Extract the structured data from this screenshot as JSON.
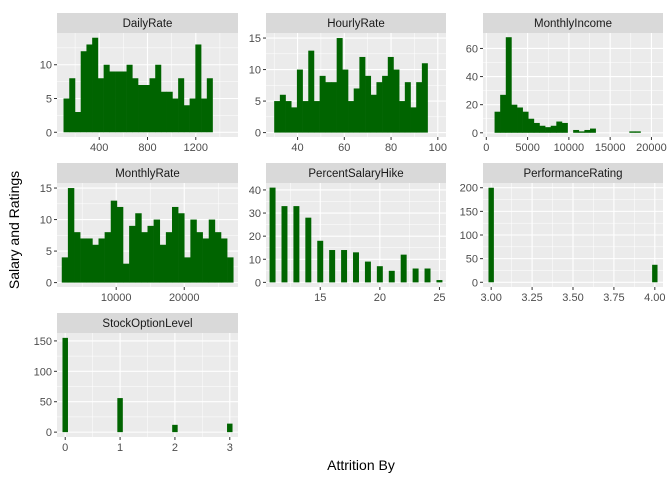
{
  "figure": {
    "xlabel": "Attrition By",
    "ylabel": "Salary and Ratings"
  },
  "style": {
    "panel_bg": "#ebebeb",
    "strip_bg": "#d9d9d9",
    "grid_major": "#ffffff",
    "bar_fill": "#006400",
    "page_bg": "#ffffff"
  },
  "chart_data": [
    {
      "type": "bar",
      "title": "DailyRate",
      "xlim": [
        50,
        1550
      ],
      "ylim": [
        -0.7,
        14.7
      ],
      "xticks": [
        400,
        800,
        1200
      ],
      "xtick_labels": [
        "400",
        "800",
        "1200"
      ],
      "xminor": [
        200,
        600,
        1000,
        1400
      ],
      "yticks": [
        0,
        5,
        10
      ],
      "ytick_labels": [
        "0",
        "5",
        "10"
      ],
      "yminor": [
        2.5,
        7.5,
        12.5
      ],
      "bin_start": 104,
      "bin_width": 47.5,
      "values": [
        5,
        8,
        3,
        12,
        13,
        14,
        8,
        10,
        9,
        9,
        9,
        10,
        8,
        7,
        7,
        8,
        10,
        6,
        6,
        5,
        8,
        4,
        5,
        13,
        5,
        8
      ]
    },
    {
      "type": "bar",
      "title": "HourlyRate",
      "xlim": [
        26.5,
        103.5
      ],
      "ylim": [
        -0.7,
        15.8
      ],
      "xticks": [
        40,
        60,
        80,
        100
      ],
      "xtick_labels": [
        "40",
        "60",
        "80",
        "100"
      ],
      "xminor": [
        30,
        50,
        70,
        90
      ],
      "yticks": [
        0,
        5,
        10,
        15
      ],
      "ytick_labels": [
        "0",
        "5",
        "10",
        "15"
      ],
      "yminor": [
        2.5,
        7.5,
        12.5
      ],
      "bin_start": 30,
      "bin_width": 2.43,
      "values": [
        5,
        6,
        5,
        4,
        10,
        5,
        13,
        5,
        9,
        8,
        8,
        15,
        10,
        5,
        7,
        12,
        9,
        6,
        8,
        9,
        12,
        10,
        5,
        8,
        4,
        8,
        11
      ]
    },
    {
      "type": "bar",
      "title": "MonthlyIncome",
      "xlim": [
        -400,
        21400
      ],
      "ylim": [
        -3,
        71
      ],
      "xticks": [
        0,
        5000,
        10000,
        15000,
        20000
      ],
      "xtick_labels": [
        "0",
        "5000",
        "10000",
        "15000",
        "20000"
      ],
      "xminor": [
        2500,
        7500,
        12500,
        17500
      ],
      "yticks": [
        0,
        20,
        40,
        60
      ],
      "ytick_labels": [
        "0",
        "20",
        "40",
        "60"
      ],
      "yminor": [
        10,
        30,
        50
      ],
      "bin_start": 1000,
      "bin_width": 680,
      "values": [
        15,
        27,
        68,
        20,
        18,
        15,
        10,
        7,
        5,
        4,
        5,
        8,
        7,
        0,
        2,
        1,
        2,
        3,
        0,
        0,
        0,
        0,
        0,
        0,
        1,
        1,
        0
      ]
    },
    {
      "type": "bar",
      "title": "MonthlyRate",
      "xlim": [
        1300,
        27900
      ],
      "ylim": [
        -0.7,
        15.8
      ],
      "xticks": [
        10000,
        20000
      ],
      "xtick_labels": [
        "10000",
        "20000"
      ],
      "xminor": [
        5000,
        15000,
        25000
      ],
      "yticks": [
        0,
        5,
        10,
        15
      ],
      "ytick_labels": [
        "0",
        "5",
        "10",
        "15"
      ],
      "yminor": [
        2.5,
        7.5,
        12.5
      ],
      "bin_start": 2000,
      "bin_width": 900,
      "values": [
        4,
        15,
        8,
        7,
        7,
        6,
        7,
        8,
        13,
        12,
        3,
        9,
        11,
        8,
        9,
        10,
        6,
        8,
        12,
        11,
        4,
        10,
        8,
        7,
        10,
        8,
        7,
        4
      ]
    },
    {
      "type": "bar",
      "title": "PercentSalaryHike",
      "xlim": [
        10.45,
        25.55
      ],
      "ylim": [
        -2,
        43
      ],
      "xticks": [
        15,
        20,
        25
      ],
      "xtick_labels": [
        "15",
        "20",
        "25"
      ],
      "xminor": [
        12.5,
        17.5,
        22.5
      ],
      "yticks": [
        0,
        10,
        20,
        30,
        40
      ],
      "ytick_labels": [
        "0",
        "10",
        "20",
        "30",
        "40"
      ],
      "yminor": [
        5,
        15,
        25,
        35
      ],
      "x": [
        11,
        12,
        13,
        14,
        15,
        16,
        17,
        18,
        19,
        20,
        21,
        22,
        23,
        24,
        25
      ],
      "bar_width": 0.5,
      "values": [
        41,
        33,
        33,
        28,
        18,
        14,
        14,
        13,
        9,
        7,
        5,
        12,
        6,
        6,
        1
      ]
    },
    {
      "type": "bar",
      "title": "PerformanceRating",
      "xlim": [
        2.95,
        4.05
      ],
      "ylim": [
        -10,
        210
      ],
      "xticks": [
        3.0,
        3.25,
        3.5,
        3.75,
        4.0
      ],
      "xtick_labels": [
        "3.00",
        "3.25",
        "3.50",
        "3.75",
        "4.00"
      ],
      "xminor": [
        3.125,
        3.375,
        3.625,
        3.875
      ],
      "yticks": [
        0,
        50,
        100,
        150,
        200
      ],
      "ytick_labels": [
        "0",
        "50",
        "100",
        "150",
        "200"
      ],
      "yminor": [
        25,
        75,
        125,
        175
      ],
      "x": [
        3.0,
        4.0
      ],
      "bar_width": 0.033,
      "values": [
        200,
        37
      ]
    },
    {
      "type": "bar",
      "title": "StockOptionLevel",
      "xlim": [
        -0.15,
        3.15
      ],
      "ylim": [
        -8,
        163
      ],
      "xticks": [
        0,
        1,
        2,
        3
      ],
      "xtick_labels": [
        "0",
        "1",
        "2",
        "3"
      ],
      "xminor": [
        0.5,
        1.5,
        2.5
      ],
      "yticks": [
        0,
        50,
        100,
        150
      ],
      "ytick_labels": [
        "0",
        "50",
        "100",
        "150"
      ],
      "yminor": [
        25,
        75,
        125
      ],
      "x": [
        0,
        1,
        2,
        3
      ],
      "bar_width": 0.1,
      "values": [
        155,
        56,
        12,
        14
      ]
    }
  ]
}
